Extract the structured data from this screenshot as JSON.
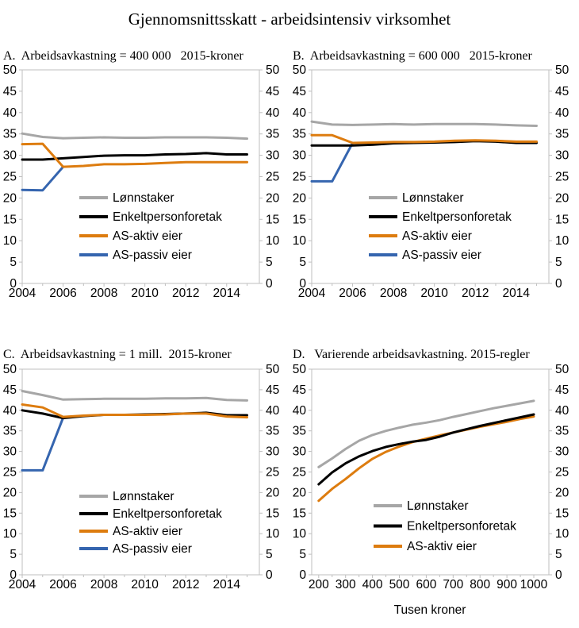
{
  "figure_title": "Gjennomsnittsskatt - arbeidsintensiv virksomhet",
  "colors": {
    "lonnstaker": "#a6a6a6",
    "enkeltpersonforetak": "#000000",
    "as_aktiv": "#dd7c0f",
    "as_passiv": "#3565af",
    "axis": "#bfbfbf",
    "text": "#000000"
  },
  "chart_data": [
    {
      "id": "A",
      "type": "line",
      "title": "A.  Arbeidsavkastning = 400 000   2015-kroner",
      "xlabel": "",
      "xlim": [
        2004,
        2015.6
      ],
      "ylim": [
        0,
        50
      ],
      "ytick_step": 5,
      "xticks": [
        2004,
        2006,
        2008,
        2010,
        2012,
        2014
      ],
      "xminor": [
        2005,
        2007,
        2009,
        2011,
        2013,
        2015
      ],
      "x": [
        2004,
        2005,
        2006,
        2007,
        2008,
        2009,
        2010,
        2011,
        2012,
        2013,
        2014,
        2015
      ],
      "series": [
        {
          "name": "Lønnstaker",
          "color_key": "lonnstaker",
          "z": 0,
          "values": [
            35.1,
            34.3,
            34.0,
            34.1,
            34.2,
            34.1,
            34.1,
            34.2,
            34.2,
            34.2,
            34.1,
            33.9
          ]
        },
        {
          "name": "Enkeltpersonforetak",
          "color_key": "enkeltpersonforetak",
          "z": 2,
          "values": [
            29.0,
            29.0,
            29.3,
            29.6,
            29.9,
            30.0,
            30.0,
            30.2,
            30.3,
            30.5,
            30.2,
            30.2
          ]
        },
        {
          "name": "AS-aktiv eier",
          "color_key": "as_aktiv",
          "z": 3,
          "values": [
            32.6,
            32.7,
            27.3,
            27.5,
            27.9,
            27.9,
            28.0,
            28.2,
            28.4,
            28.4,
            28.4,
            28.4
          ]
        },
        {
          "name": "AS-passiv eier",
          "color_key": "as_passiv",
          "z": 1,
          "values": [
            21.9,
            21.8,
            27.3
          ]
        }
      ]
    },
    {
      "id": "B",
      "type": "line",
      "title": "B.  Arbeidsavkastning = 600 000   2015-kroner",
      "xlabel": "",
      "xlim": [
        2004,
        2015.6
      ],
      "ylim": [
        0,
        50
      ],
      "ytick_step": 5,
      "xticks": [
        2004,
        2006,
        2008,
        2010,
        2012,
        2014
      ],
      "xminor": [
        2005,
        2007,
        2009,
        2011,
        2013,
        2015
      ],
      "x": [
        2004,
        2005,
        2006,
        2007,
        2008,
        2009,
        2010,
        2011,
        2012,
        2013,
        2014,
        2015
      ],
      "series": [
        {
          "name": "Lønnstaker",
          "color_key": "lonnstaker",
          "z": 0,
          "values": [
            37.9,
            37.2,
            37.1,
            37.2,
            37.3,
            37.2,
            37.3,
            37.3,
            37.3,
            37.2,
            37.0,
            36.9
          ]
        },
        {
          "name": "Enkeltpersonforetak",
          "color_key": "enkeltpersonforetak",
          "z": 2,
          "values": [
            32.3,
            32.3,
            32.3,
            32.5,
            32.8,
            32.9,
            33.0,
            33.1,
            33.3,
            33.2,
            32.9,
            32.9
          ]
        },
        {
          "name": "AS-aktiv eier",
          "color_key": "as_aktiv",
          "z": 3,
          "values": [
            34.7,
            34.7,
            32.9,
            33.0,
            33.1,
            33.1,
            33.2,
            33.4,
            33.5,
            33.4,
            33.2,
            33.2
          ]
        },
        {
          "name": "AS-passiv eier",
          "color_key": "as_passiv",
          "z": 1,
          "values": [
            23.9,
            23.9,
            32.9
          ]
        }
      ]
    },
    {
      "id": "C",
      "type": "line",
      "title": "C.  Arbeidsavkastning = 1 mill.  2015-kroner",
      "xlabel": "",
      "xlim": [
        2004,
        2015.6
      ],
      "ylim": [
        0,
        50
      ],
      "ytick_step": 5,
      "xticks": [
        2004,
        2006,
        2008,
        2010,
        2012,
        2014
      ],
      "xminor": [
        2005,
        2007,
        2009,
        2011,
        2013,
        2015
      ],
      "x": [
        2004,
        2005,
        2006,
        2007,
        2008,
        2009,
        2010,
        2011,
        2012,
        2013,
        2014,
        2015
      ],
      "series": [
        {
          "name": "Lønnstaker",
          "color_key": "lonnstaker",
          "z": 0,
          "values": [
            44.7,
            43.7,
            42.6,
            42.7,
            42.8,
            42.8,
            42.8,
            42.9,
            42.9,
            43.0,
            42.5,
            42.4
          ]
        },
        {
          "name": "Enkeltpersonforetak",
          "color_key": "enkeltpersonforetak",
          "z": 2,
          "values": [
            40.0,
            39.2,
            38.1,
            38.6,
            38.9,
            38.9,
            39.0,
            39.1,
            39.2,
            39.4,
            38.8,
            38.8
          ]
        },
        {
          "name": "AS-aktiv eier",
          "color_key": "as_aktiv",
          "z": 3,
          "values": [
            41.4,
            40.7,
            38.4,
            38.7,
            38.9,
            38.9,
            38.9,
            39.0,
            39.2,
            39.2,
            38.5,
            38.3
          ]
        },
        {
          "name": "AS-passiv eier",
          "color_key": "as_passiv",
          "z": 1,
          "values": [
            25.4,
            25.4,
            38.2
          ]
        }
      ]
    },
    {
      "id": "D",
      "type": "line",
      "title": "D.   Varierende arbeidsavkastning. 2015-regler",
      "xlabel": "Tusen kroner",
      "xlim": [
        174,
        1056
      ],
      "ylim": [
        0,
        50
      ],
      "ytick_step": 5,
      "xticks": [
        200,
        300,
        400,
        500,
        600,
        700,
        800,
        900,
        1000
      ],
      "xminor": [
        250,
        350,
        450,
        550,
        650,
        750,
        850,
        950
      ],
      "x": [
        200,
        250,
        300,
        350,
        400,
        450,
        500,
        550,
        600,
        650,
        700,
        750,
        800,
        850,
        900,
        950,
        1000
      ],
      "series": [
        {
          "name": "Lønnstaker",
          "color_key": "lonnstaker",
          "z": 0,
          "values": [
            26.2,
            28.3,
            30.6,
            32.6,
            34.0,
            35.0,
            35.8,
            36.5,
            37.0,
            37.6,
            38.4,
            39.1,
            39.8,
            40.5,
            41.1,
            41.7,
            42.3
          ]
        },
        {
          "name": "Enkeltpersonforetak",
          "color_key": "enkeltpersonforetak",
          "z": 2,
          "values": [
            22.0,
            24.9,
            27.1,
            28.8,
            30.1,
            31.1,
            31.8,
            32.4,
            32.8,
            33.6,
            34.6,
            35.4,
            36.2,
            36.9,
            37.6,
            38.3,
            39.0
          ]
        },
        {
          "name": "AS-aktiv eier",
          "color_key": "as_aktiv",
          "z": 1,
          "values": [
            18.0,
            20.9,
            23.3,
            25.9,
            28.2,
            29.9,
            31.2,
            32.3,
            33.1,
            33.9,
            34.6,
            35.3,
            36.0,
            36.6,
            37.2,
            37.9,
            38.5
          ]
        }
      ]
    }
  ]
}
